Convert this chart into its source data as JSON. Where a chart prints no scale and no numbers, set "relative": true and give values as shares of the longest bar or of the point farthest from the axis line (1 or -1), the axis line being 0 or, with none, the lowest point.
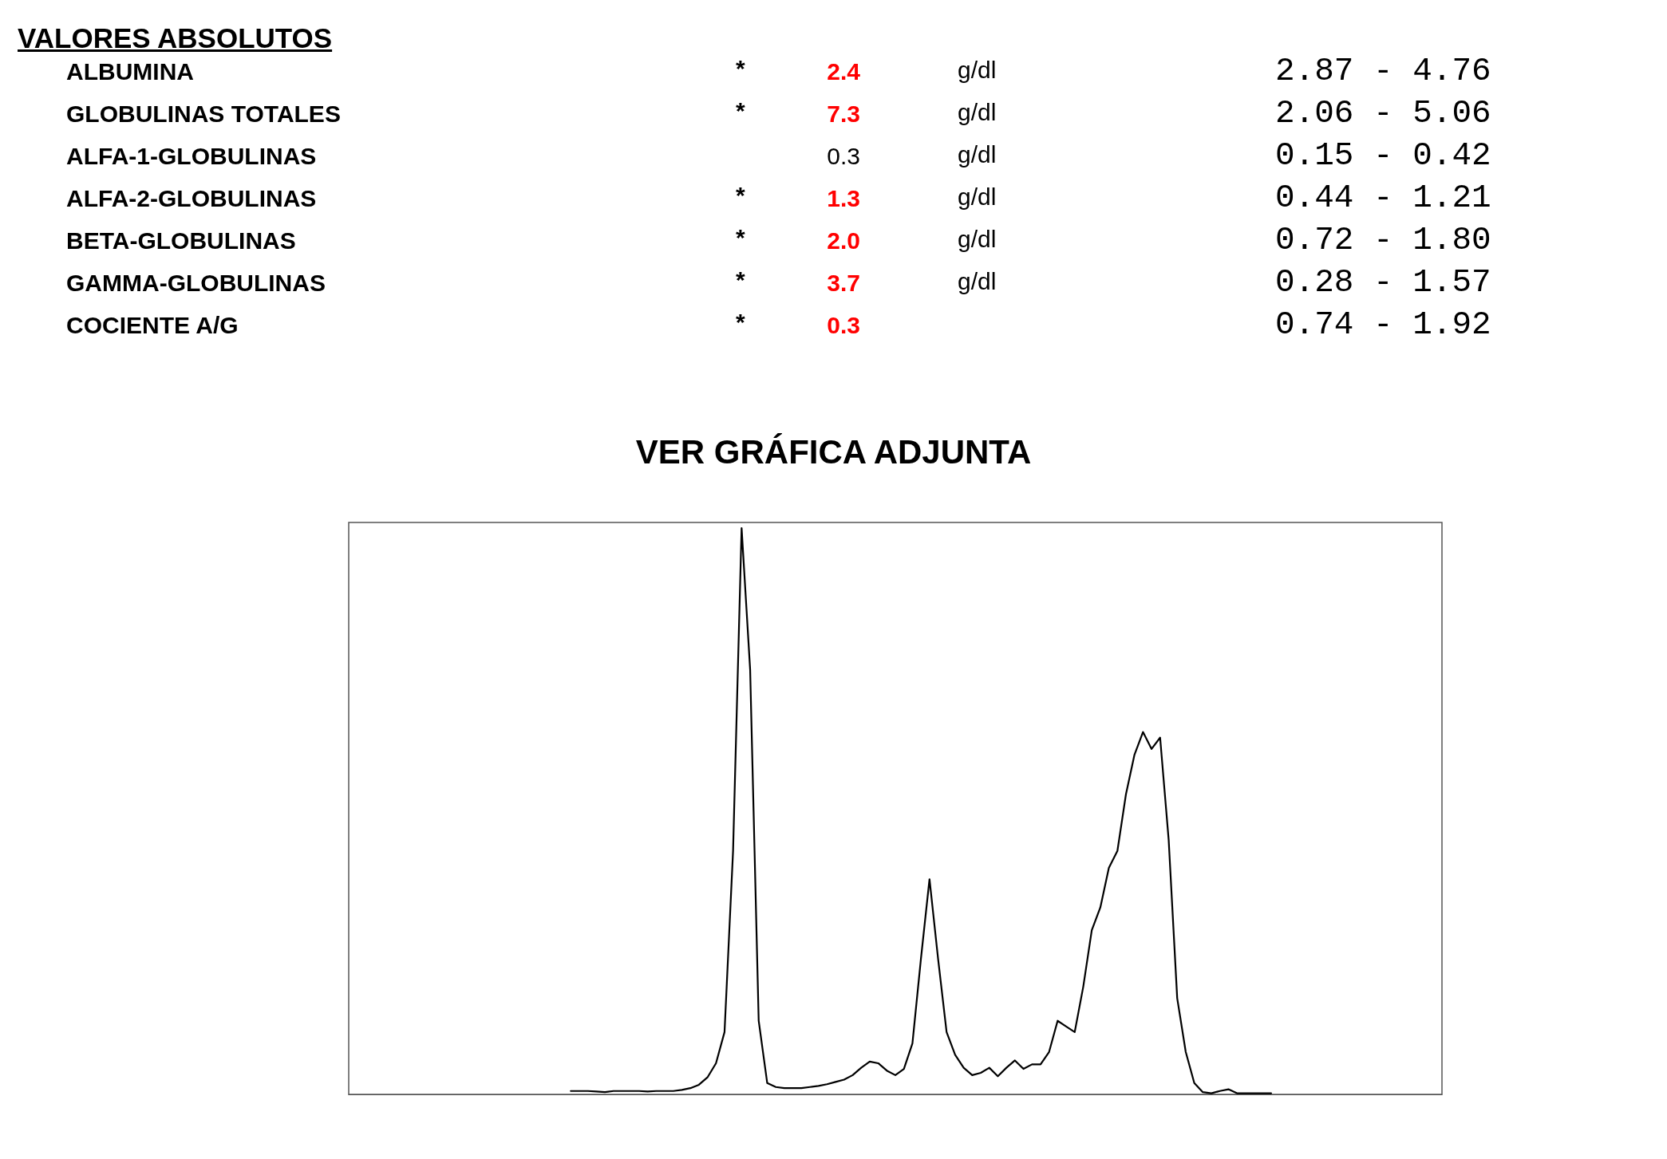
{
  "chart_data": [
    {
      "type": "other",
      "title": "VALORES ABSOLUTOS",
      "y_categories": [
        "ALBUMINA",
        "GLOBULINAS TOTALES",
        "ALFA-1-GLOBULINAS",
        "ALFA-2-GLOBULINAS",
        "BETA-GLOBULINAS",
        "GAMMA-GLOBULINAS",
        "COCIENTE A/G"
      ],
      "cell_labels": [
        [
          "*",
          "2.4",
          "g/dl",
          "2.87 - 4.76"
        ],
        [
          "*",
          "7.3",
          "g/dl",
          "2.06 - 5.06"
        ],
        [
          null,
          "0.3",
          "g/dl",
          "0.15 - 0.42"
        ],
        [
          "*",
          "1.3",
          "g/dl",
          "0.44 - 1.21"
        ],
        [
          "*",
          "2.0",
          "g/dl",
          "0.72 - 1.80"
        ],
        [
          "*",
          "3.7",
          "g/dl",
          "0.28 - 1.57"
        ],
        [
          "*",
          "0.3",
          null,
          "0.74 - 1.92"
        ]
      ],
      "colors": [
        "#ff0000",
        "#ff0000",
        "#000000",
        "#ff0000",
        "#ff0000",
        "#ff0000",
        "#ff0000"
      ]
    },
    {
      "type": "line",
      "title": "VER GRÁFICA ADJUNTA",
      "relative": true,
      "marker": "none",
      "color": "#000000",
      "categories": [
        null,
        null,
        null,
        null,
        null,
        null,
        null,
        null,
        null,
        null,
        null,
        null,
        null,
        null,
        null,
        null,
        null,
        null,
        null,
        null,
        null,
        null,
        null,
        null,
        null,
        null,
        null,
        null,
        null,
        null,
        null,
        null,
        null,
        null,
        null,
        null,
        null,
        null,
        null,
        null,
        null,
        null,
        null,
        null,
        null,
        null,
        null,
        null,
        null,
        null,
        null,
        null,
        null,
        null,
        null,
        null,
        null,
        null,
        null,
        null,
        null,
        null,
        null,
        null,
        null,
        null,
        null,
        null,
        null,
        null,
        null,
        null,
        null,
        null,
        null,
        null,
        null,
        null,
        null,
        null,
        null,
        null,
        null,
        null,
        null,
        null,
        null,
        null,
        null,
        null,
        null,
        null,
        null,
        null,
        null,
        null,
        null,
        null,
        null,
        null,
        null,
        null,
        null,
        null,
        null,
        null,
        null,
        null,
        null,
        null,
        null,
        null,
        null,
        null,
        null,
        null,
        null,
        null,
        null,
        null,
        null,
        null,
        null,
        null,
        null,
        null,
        null,
        null,
        null
      ],
      "values": [
        null,
        null,
        null,
        null,
        null,
        null,
        null,
        null,
        null,
        null,
        null,
        null,
        null,
        null,
        null,
        null,
        null,
        null,
        null,
        null,
        null,
        null,
        null,
        null,
        null,
        null,
        0.006,
        0.006,
        0.006,
        0.005,
        0.004,
        0.006,
        0.006,
        0.006,
        0.006,
        0.005,
        0.006,
        0.006,
        0.006,
        0.008,
        0.011,
        0.017,
        0.03,
        0.055,
        0.11,
        0.43,
        1.0,
        0.75,
        0.13,
        0.02,
        0.013,
        0.011,
        0.011,
        0.011,
        0.013,
        0.015,
        0.018,
        0.022,
        0.026,
        0.034,
        0.047,
        0.058,
        0.055,
        0.042,
        0.034,
        0.045,
        0.09,
        0.24,
        0.38,
        0.24,
        0.11,
        0.07,
        0.047,
        0.034,
        0.038,
        0.047,
        0.032,
        0.047,
        0.06,
        0.045,
        0.053,
        0.053,
        0.075,
        0.13,
        0.12,
        0.11,
        0.19,
        0.29,
        0.33,
        0.4,
        0.43,
        0.53,
        0.6,
        0.64,
        0.61,
        0.63,
        0.45,
        0.17,
        0.075,
        0.02,
        0.004,
        0.002,
        0.006,
        0.009,
        0.002,
        0.002,
        0.002,
        0.002,
        0.002,
        null,
        null,
        null,
        null,
        null,
        null,
        null,
        null,
        null,
        null,
        null,
        null,
        null,
        null,
        null,
        null,
        null,
        null,
        null,
        null
      ]
    }
  ]
}
